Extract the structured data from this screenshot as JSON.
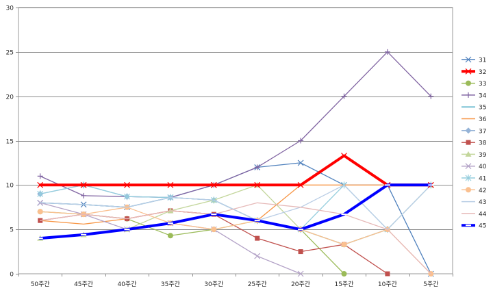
{
  "chart_data": {
    "type": "line",
    "title": "",
    "xlabel": "",
    "ylabel": "",
    "ylim": [
      0,
      30
    ],
    "yticks": [
      "0",
      "5",
      "10",
      "15",
      "20",
      "25",
      "30"
    ],
    "grid": "horizontal",
    "legend": "right",
    "categories": [
      "50주간",
      "45주간",
      "40주간",
      "35주간",
      "30주간",
      "25주간",
      "20주간",
      "15주간",
      "10주간",
      "5주간"
    ],
    "series": [
      {
        "name": "31",
        "color": "#4f81bd",
        "marker": "x",
        "values": [
          8,
          7.8,
          7.5,
          8.6,
          10,
          12,
          12.5,
          10,
          10,
          0
        ]
      },
      {
        "name": "32",
        "color": "#ff0000",
        "marker": "x",
        "width": 4,
        "values": [
          10,
          10,
          10,
          10,
          10,
          10,
          10,
          13.3,
          10,
          10
        ]
      },
      {
        "name": "33",
        "color": "#9bbb59",
        "marker": "circle",
        "values": [
          7,
          6.7,
          6.2,
          4.3,
          5,
          6,
          5,
          0,
          null,
          null
        ]
      },
      {
        "name": "34",
        "color": "#8064a2",
        "marker": "plus",
        "values": [
          11,
          8.8,
          8.7,
          8.6,
          10,
          12,
          15,
          20,
          25,
          20
        ]
      },
      {
        "name": "35",
        "color": "#4bacc6",
        "marker": "none",
        "values": [
          8,
          7.8,
          7.5,
          8.6,
          8.3,
          6,
          5,
          3.3,
          5,
          null
        ]
      },
      {
        "name": "36",
        "color": "#f79646",
        "marker": "none",
        "values": [
          6,
          5.6,
          6.2,
          7.1,
          6.7,
          6,
          10,
          10,
          10,
          null
        ]
      },
      {
        "name": "37",
        "color": "#95b3d7",
        "marker": "diamond",
        "values": [
          9,
          10,
          8.7,
          8.6,
          8.3,
          6,
          5,
          3.3,
          5,
          null
        ]
      },
      {
        "name": "38",
        "color": "#c0504d",
        "marker": "square",
        "values": [
          6,
          6.7,
          6.2,
          7.1,
          6.7,
          4,
          2.5,
          3.3,
          0,
          null
        ]
      },
      {
        "name": "39",
        "color": "#c3d69b",
        "marker": "triangle",
        "values": [
          4,
          4.4,
          5,
          7.1,
          8.3,
          10,
          5,
          3.3,
          5,
          10
        ]
      },
      {
        "name": "40",
        "color": "#b3a2c7",
        "marker": "x",
        "values": [
          8,
          6.7,
          5,
          5.7,
          5,
          2,
          0,
          null,
          null,
          null
        ]
      },
      {
        "name": "41",
        "color": "#93cddd",
        "marker": "star",
        "values": [
          9,
          10,
          8.7,
          8.6,
          8.3,
          6,
          5,
          10,
          5,
          10
        ]
      },
      {
        "name": "42",
        "color": "#fac090",
        "marker": "circle",
        "values": [
          7,
          6.7,
          7.5,
          5.7,
          5,
          6,
          5,
          3.3,
          5,
          0
        ]
      },
      {
        "name": "43",
        "color": "#b9cde5",
        "marker": "none",
        "values": [
          8,
          7.8,
          7.5,
          8.6,
          8.3,
          6,
          7.5,
          10,
          5,
          10
        ]
      },
      {
        "name": "44",
        "color": "#e6b9b8",
        "marker": "none",
        "values": [
          6,
          6.7,
          6.2,
          7.1,
          6.7,
          8,
          7.5,
          6.7,
          5,
          0
        ]
      },
      {
        "name": "45",
        "color": "#0000ff",
        "marker": "dash",
        "width": 4,
        "values": [
          4,
          4.4,
          5,
          5.7,
          6.7,
          6,
          5,
          6.7,
          10,
          10
        ]
      }
    ]
  }
}
